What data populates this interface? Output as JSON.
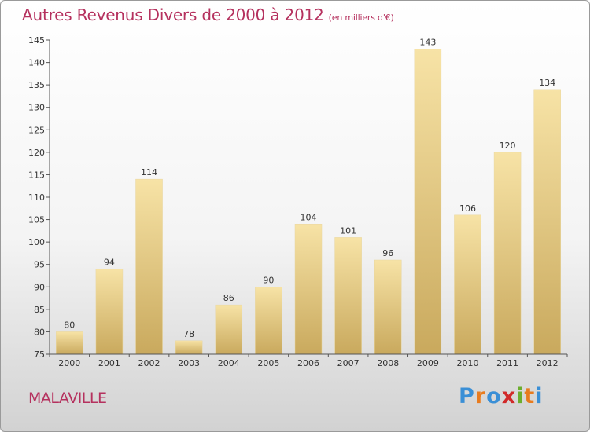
{
  "title": "Autres Revenus Divers de 2000 à 2012",
  "subtitle": "(en milliers d'€)",
  "city": "MALAVILLE",
  "logo": {
    "letters": [
      "P",
      "r",
      "o",
      "x",
      "i",
      "t",
      "i"
    ],
    "colors": [
      "#3a8fd6",
      "#e87b1e",
      "#3a8fd6",
      "#d12a2a",
      "#6cae2e",
      "#e87b1e",
      "#3a8fd6"
    ]
  },
  "colors": {
    "bar_light": "#f7e3a6",
    "bar_dark": "#c9a95d",
    "title": "#b5315e"
  },
  "chart_data": {
    "type": "bar",
    "title": "Autres Revenus Divers de 2000 à 2012",
    "subtitle": "(en milliers d'€)",
    "categories": [
      "2000",
      "2001",
      "2002",
      "2003",
      "2004",
      "2005",
      "2006",
      "2007",
      "2008",
      "2009",
      "2010",
      "2011",
      "2012"
    ],
    "values": [
      80,
      94,
      114,
      78,
      86,
      90,
      104,
      101,
      96,
      143,
      106,
      120,
      134
    ],
    "ylim": [
      75,
      145
    ],
    "yticks": [
      75,
      80,
      85,
      90,
      95,
      100,
      105,
      110,
      115,
      120,
      125,
      130,
      135,
      140,
      145
    ],
    "grid": false,
    "legend": "none"
  }
}
